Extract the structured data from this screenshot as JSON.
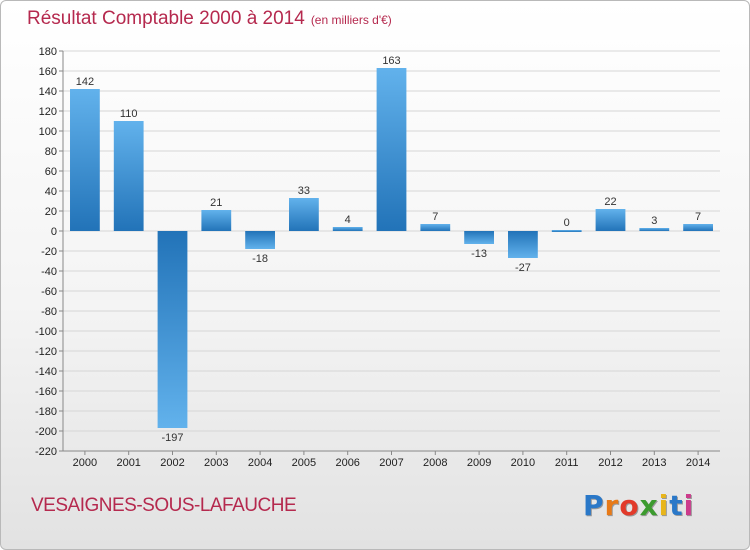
{
  "title": "Résultat Comptable 2000 à 2014",
  "unit_note": "(en milliers d'€)",
  "commune": "VESAIGNES-SOUS-LAFAUCHE",
  "logo": {
    "letters": [
      "P",
      "r",
      "o",
      "x",
      "i",
      "t",
      "i"
    ],
    "colors": [
      "#2a78c8",
      "#e87a17",
      "#e23a2a",
      "#3c9b2e",
      "#e8b51a",
      "#2a78c8",
      "#cc3b8c"
    ]
  },
  "chart_data": {
    "type": "bar",
    "title": "Résultat Comptable 2000 à 2014",
    "ylabel": "en milliers d'€",
    "xlabel": "",
    "categories": [
      "2000",
      "2001",
      "2002",
      "2003",
      "2004",
      "2005",
      "2006",
      "2007",
      "2008",
      "2009",
      "2010",
      "2011",
      "2012",
      "2013",
      "2014"
    ],
    "values": [
      142,
      110,
      -197,
      21,
      -18,
      33,
      4,
      163,
      7,
      -13,
      -27,
      0,
      22,
      3,
      7
    ],
    "ylim": [
      -220,
      180
    ],
    "yticks": [
      180,
      160,
      140,
      120,
      100,
      80,
      60,
      40,
      20,
      0,
      -20,
      -40,
      -60,
      -80,
      -100,
      -120,
      -140,
      -160,
      -180,
      -200,
      -220
    ],
    "grid": true,
    "bar_color": "#3b8fd6"
  }
}
